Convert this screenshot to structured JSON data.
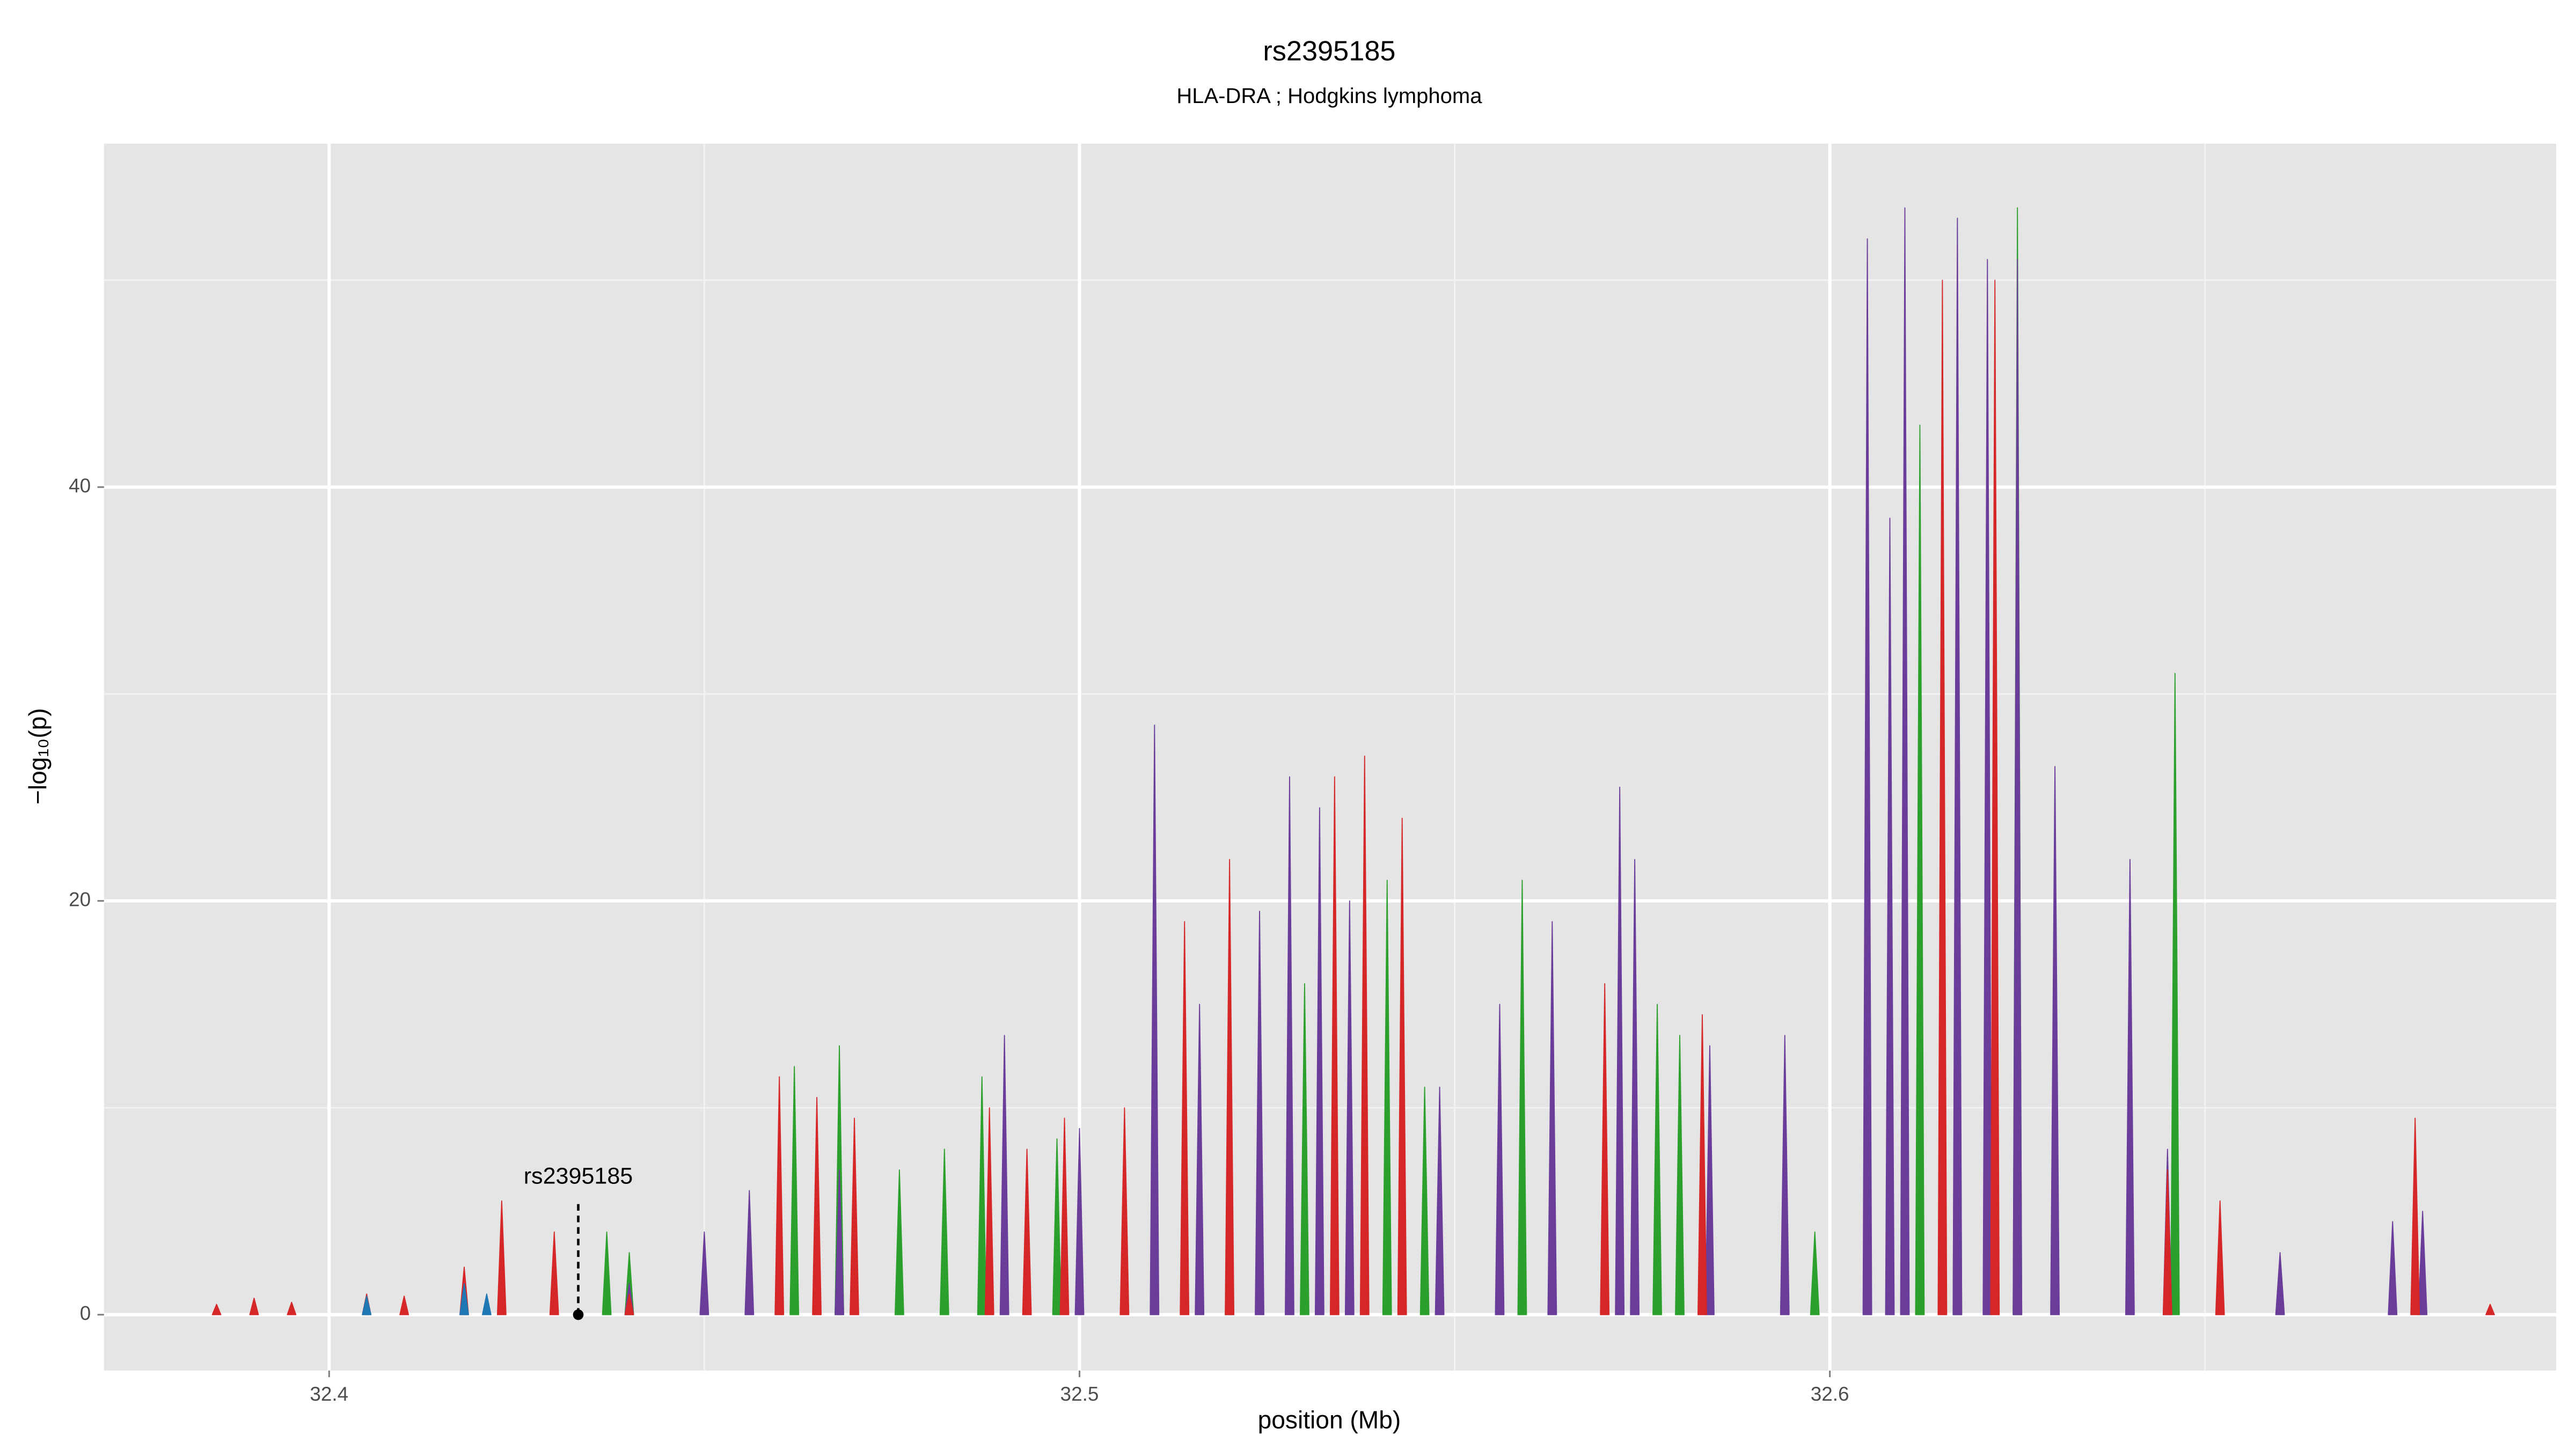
{
  "chart_data": {
    "type": "area",
    "title": "rs2395185",
    "subtitle": "HLA-DRA ; Hodgkins lymphoma",
    "x_label": "position (Mb)",
    "y_label": "−log₁₀(p)",
    "xlim": [
      32.37,
      32.6968
    ],
    "ylim": [
      -2.7,
      56.6
    ],
    "xticks": [
      32.4,
      32.5,
      32.6
    ],
    "yticks": [
      0,
      20,
      40
    ],
    "grid": true,
    "annotation": {
      "text": "rs2395185",
      "x": 32.4332,
      "y": 0
    },
    "series": [
      {
        "color": "#2ca02c",
        "x": [
          32.437,
          32.44,
          32.462,
          32.468,
          32.476,
          32.482,
          32.487,
          32.497,
          32.52,
          32.53,
          32.541,
          32.546,
          32.559,
          32.577,
          32.58,
          32.598,
          32.612,
          32.617,
          32.625,
          32.646
        ],
        "values": [
          4,
          3,
          12,
          13,
          7,
          8,
          11.5,
          8.5,
          10,
          16,
          21,
          11,
          21,
          15,
          13.5,
          4,
          43,
          45,
          53.5,
          31
        ]
      },
      {
        "color": "#6a3d9a",
        "x": [
          32.44,
          32.45,
          32.456,
          32.468,
          32.49,
          32.5,
          32.51,
          32.516,
          32.524,
          32.528,
          32.532,
          32.536,
          32.548,
          32.556,
          32.563,
          32.572,
          32.574,
          32.584,
          32.594,
          32.605,
          32.608,
          32.61,
          32.617,
          32.621,
          32.625,
          32.63,
          32.64,
          32.645,
          32.66,
          32.675,
          32.679
        ],
        "values": [
          1.5,
          4,
          6,
          7,
          13.5,
          9,
          28.5,
          15,
          19.5,
          26,
          24.5,
          20,
          11,
          15,
          19,
          25.5,
          22,
          13,
          13.5,
          52,
          38.5,
          53.5,
          53,
          51,
          51,
          26.5,
          22,
          8,
          3,
          4.5,
          5
        ]
      },
      {
        "color": "#d62728",
        "x": [
          32.385,
          32.39,
          32.395,
          32.405,
          32.41,
          32.418,
          32.423,
          32.43,
          32.44,
          32.46,
          32.465,
          32.47,
          32.488,
          32.493,
          32.498,
          32.506,
          32.514,
          32.52,
          32.534,
          32.538,
          32.543,
          32.57,
          32.583,
          32.615,
          32.622,
          32.645,
          32.652,
          32.678,
          32.688
        ],
        "values": [
          0.5,
          0.8,
          0.6,
          1,
          0.9,
          2.3,
          5.5,
          4,
          1,
          11.5,
          10.5,
          9.5,
          10,
          8,
          9.5,
          10,
          19,
          22,
          26,
          27,
          24,
          16,
          14.5,
          50,
          50,
          7,
          5.5,
          9.5,
          0.5
        ]
      },
      {
        "color": "#1f77b4",
        "x": [
          32.405,
          32.418,
          32.421
        ],
        "values": [
          0.9,
          1.5,
          1
        ]
      }
    ]
  }
}
